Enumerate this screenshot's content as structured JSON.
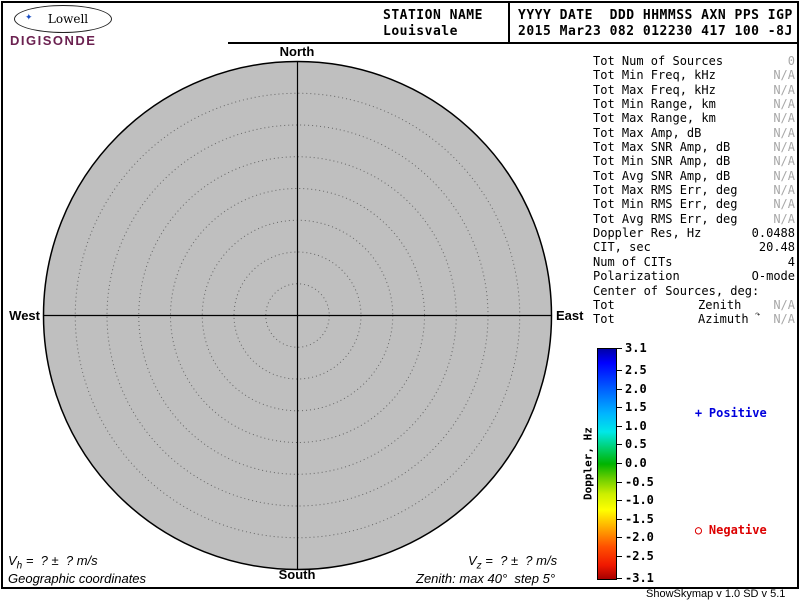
{
  "colors": {
    "positive": "#0000dd",
    "negative": "#dd0000",
    "muted_value": "#a8a8a8",
    "map_fill": "#bfbfbf",
    "brand": "#6b2150"
  },
  "logo": {
    "brand_top": "Lowell",
    "brand_bottom": "DIGISONDE",
    "sparkle": "✦"
  },
  "header": {
    "station_label": "STATION NAME",
    "station_value": "Louisvale",
    "datetime_label": "YYYY DATE  DDD HHMMSS AXN PPS IGP",
    "datetime_value": "2015 Mar23 082 012230 417 100 -8J"
  },
  "skymap": {
    "north": "North",
    "south": "South",
    "west": "West",
    "east": "East",
    "rings": 8,
    "max_zenith_deg": 40,
    "step_deg": 5
  },
  "stats": {
    "rows": [
      {
        "label": "Tot Num of Sources",
        "value": "0",
        "muted": true
      },
      {
        "label": "Tot Min Freq, kHz",
        "value": "N/A",
        "muted": true
      },
      {
        "label": "Tot Max Freq, kHz",
        "value": "N/A",
        "muted": true
      },
      {
        "label": "Tot Min Range, km",
        "value": "N/A",
        "muted": true
      },
      {
        "label": "Tot Max Range, km",
        "value": "N/A",
        "muted": true
      },
      {
        "label": "Tot Max Amp, dB",
        "value": "N/A",
        "muted": true
      },
      {
        "label": "Tot Max SNR Amp, dB",
        "value": "N/A",
        "muted": true
      },
      {
        "label": "Tot Min SNR Amp, dB",
        "value": "N/A",
        "muted": true
      },
      {
        "label": "Tot Avg SNR Amp, dB",
        "value": "N/A",
        "muted": true
      },
      {
        "label": "Tot Max RMS Err, deg",
        "value": "N/A",
        "muted": true
      },
      {
        "label": "Tot Min RMS Err, deg",
        "value": "N/A",
        "muted": true
      },
      {
        "label": "Tot Avg RMS Err, deg",
        "value": "N/A",
        "muted": true
      },
      {
        "label": "Doppler Res, Hz",
        "value": "0.0488",
        "muted": false
      },
      {
        "label": "CIT, sec",
        "value": "20.48",
        "muted": false
      },
      {
        "label": "Num of CITs",
        "value": "4",
        "muted": false
      },
      {
        "label": "Polarization",
        "value": "O-mode",
        "muted": false
      },
      {
        "label": "Center of Sources, deg:",
        "value": "",
        "muted": false
      },
      {
        "label": "Tot",
        "mid": "Zenith",
        "value": "N/A",
        "muted": true
      },
      {
        "label": "Tot",
        "mid": "Azimuth",
        "mid_symbol": "↷",
        "value": "N/A",
        "muted": true
      }
    ]
  },
  "colorbar": {
    "title": "Doppler, Hz",
    "max": 3.1,
    "min": -3.1,
    "ticks": [
      {
        "label": "3.1",
        "value": 3.1
      },
      {
        "label": "2.5",
        "value": 2.5
      },
      {
        "label": "2.0",
        "value": 2.0
      },
      {
        "label": "1.5",
        "value": 1.5
      },
      {
        "label": "1.0",
        "value": 1.0
      },
      {
        "label": "0.5",
        "value": 0.5
      },
      {
        "label": "0.0",
        "value": 0.0
      },
      {
        "label": "-0.5",
        "value": -0.5
      },
      {
        "label": "-1.0",
        "value": -1.0
      },
      {
        "label": "-1.5",
        "value": -1.5
      },
      {
        "label": "-2.0",
        "value": -2.0
      },
      {
        "label": "-2.5",
        "value": -2.5
      },
      {
        "label": "-3.1",
        "value": -3.1
      }
    ]
  },
  "legend": {
    "positive_marker": "+",
    "positive_label": "Positive",
    "negative_marker": "○",
    "negative_label": "Negative"
  },
  "footer": {
    "vh_prefix": "V",
    "vh_sub": "h",
    "vh_rest": " =  ? ±  ? m/s",
    "coords": "Geographic coordinates",
    "vz_prefix": "V",
    "vz_sub": "z",
    "vz_rest": " =  ? ±  ? m/s",
    "zenith_note": "Zenith: max 40°  step 5°",
    "version": "ShowSkymap v 1.0  SD v 5.1"
  }
}
